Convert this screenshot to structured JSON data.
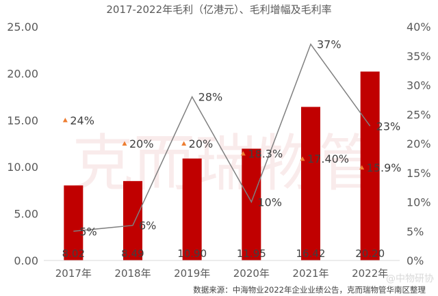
{
  "chart_data": {
    "type": "bar",
    "title": "2017-2022年毛利（亿港元）、毛利增幅及毛利率",
    "categories": [
      "2017年",
      "2018年",
      "2019年",
      "2020年",
      "2021年",
      "2022年"
    ],
    "series": [
      {
        "type": "bar",
        "axis": "left",
        "values": [
          8.02,
          8.49,
          10.9,
          11.95,
          16.42,
          20.2
        ],
        "labels": [
          "8.02",
          "8.49",
          "10.90",
          "11.95",
          "16.42",
          "20.20"
        ],
        "color": "#c00000"
      },
      {
        "type": "line",
        "axis": "right",
        "values": [
          5,
          6,
          28,
          10,
          37,
          23
        ],
        "labels": [
          "5%",
          "6%",
          "28%",
          "10%",
          "37%",
          "23%"
        ],
        "color": "#7f7f7f"
      },
      {
        "type": "scatter",
        "axis": "right",
        "marker": "triangle",
        "values": [
          24,
          20,
          20,
          18.3,
          17.4,
          15.9
        ],
        "labels": [
          "24%",
          "20%",
          "20%",
          "18.3%",
          "17.40%",
          "15.9%"
        ],
        "color": "#ed7d31"
      }
    ],
    "y_left": {
      "ylim": [
        0,
        25
      ],
      "ticks": [
        "0.00",
        "5.00",
        "10.00",
        "15.00",
        "20.00",
        "25.00"
      ]
    },
    "y_right": {
      "ylim": [
        0,
        40
      ],
      "ticks": [
        "0%",
        "5%",
        "10%",
        "15%",
        "20%",
        "25%",
        "30%",
        "35%",
        "40%"
      ]
    },
    "grid": false,
    "legend": "none"
  },
  "watermark": "克而瑞物管",
  "source": "数据来源：中海物业2022年企业业绩公告，克而瑞物管华南区整理",
  "weibo_mark": "@中物研协"
}
